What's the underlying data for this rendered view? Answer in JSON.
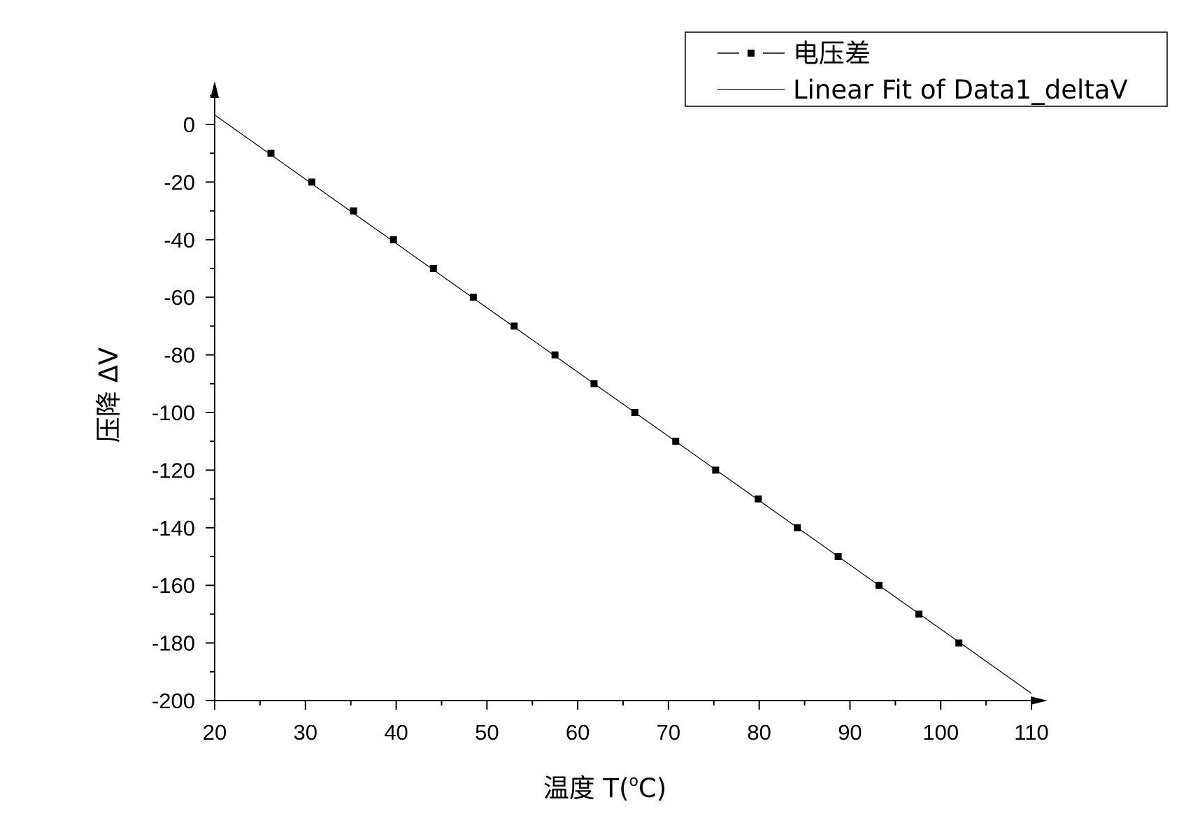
{
  "chart_data": {
    "type": "scatter",
    "title": "",
    "xlabel": "温度 T(°C)",
    "xlabel_parts": {
      "prefix": "温度 T(",
      "degree": "o",
      "suffix": "C)"
    },
    "ylabel": "压降 ΔV",
    "xlim": [
      20,
      110
    ],
    "ylim": [
      -200,
      10
    ],
    "x_ticks": [
      20,
      30,
      40,
      50,
      60,
      70,
      80,
      90,
      100,
      110
    ],
    "y_ticks": [
      0,
      -20,
      -40,
      -60,
      -80,
      -100,
      -120,
      -140,
      -160,
      -180,
      -200
    ],
    "grid": false,
    "legend_position": "top-right",
    "series": [
      {
        "name": "电压差",
        "marker": "square",
        "color": "#000000",
        "points": [
          {
            "x": 26.2,
            "y": -10
          },
          {
            "x": 30.7,
            "y": -20
          },
          {
            "x": 35.3,
            "y": -30
          },
          {
            "x": 39.7,
            "y": -40
          },
          {
            "x": 44.1,
            "y": -50
          },
          {
            "x": 48.5,
            "y": -60
          },
          {
            "x": 53.0,
            "y": -70
          },
          {
            "x": 57.5,
            "y": -80
          },
          {
            "x": 61.8,
            "y": -90
          },
          {
            "x": 66.3,
            "y": -100
          },
          {
            "x": 70.8,
            "y": -110
          },
          {
            "x": 75.2,
            "y": -120
          },
          {
            "x": 79.9,
            "y": -130
          },
          {
            "x": 84.2,
            "y": -140
          },
          {
            "x": 88.7,
            "y": -150
          },
          {
            "x": 93.2,
            "y": -160
          },
          {
            "x": 97.6,
            "y": -170
          },
          {
            "x": 102.0,
            "y": -180
          }
        ]
      },
      {
        "name": "Linear Fit of Data1_deltaV",
        "type": "line",
        "color": "#000000",
        "points": [
          {
            "x": 20,
            "y": 3.3
          },
          {
            "x": 110,
            "y": -197.5
          }
        ]
      }
    ]
  }
}
